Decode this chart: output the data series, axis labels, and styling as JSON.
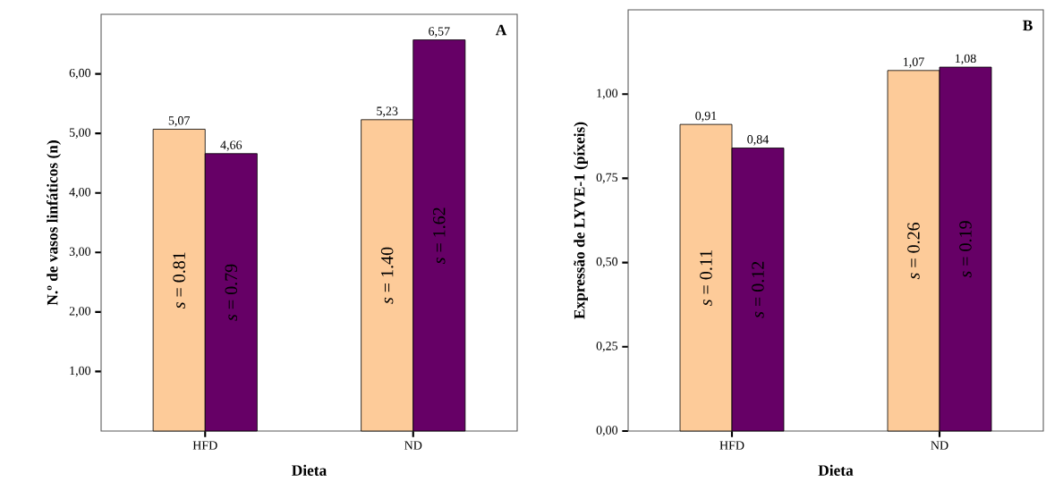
{
  "chart_data": [
    {
      "type": "bar",
      "xlabel": "Dieta",
      "ylabel": "N.º de vasos linfáticos (n)",
      "categories": [
        "HFD",
        "ND"
      ],
      "series": [
        {
          "color": "#fdcb99",
          "values": [
            5.07,
            5.23
          ],
          "value_labels": [
            "5,07",
            "5,23"
          ]
        },
        {
          "color": "#660066",
          "values": [
            4.66,
            6.57
          ],
          "value_labels": [
            "4,66",
            "6,57"
          ]
        }
      ],
      "ylim": [
        0,
        7
      ],
      "yticks": [
        {
          "value": 1,
          "label": "1,00"
        },
        {
          "value": 2,
          "label": "2,00"
        },
        {
          "value": 3,
          "label": "3,00"
        },
        {
          "value": 4,
          "label": "4,00"
        },
        {
          "value": 5,
          "label": "5,00"
        },
        {
          "value": 6,
          "label": "6,00"
        }
      ],
      "annotations": [
        "A",
        "*s* = 0.81",
        "*s* = 0.79",
        "*s* = 1.40",
        "*s* = 1.62"
      ]
    },
    {
      "type": "bar",
      "xlabel": "Dieta",
      "ylabel": "Expressão de LYVE-1 (píxeis)",
      "categories": [
        "HFD",
        "ND"
      ],
      "series": [
        {
          "color": "#fdcb99",
          "values": [
            0.91,
            1.07
          ],
          "value_labels": [
            "0,91",
            "1,07"
          ]
        },
        {
          "color": "#660066",
          "values": [
            0.84,
            1.08
          ],
          "value_labels": [
            "0,84",
            "1,08"
          ]
        }
      ],
      "ylim": [
        0,
        1.25
      ],
      "yticks": [
        {
          "value": 0,
          "label": "0,00"
        },
        {
          "value": 0.25,
          "label": "0,25"
        },
        {
          "value": 0.5,
          "label": "0,50"
        },
        {
          "value": 0.75,
          "label": "0,75"
        },
        {
          "value": 1,
          "label": "1,00"
        }
      ],
      "annotations": [
        "B",
        "*s* = 0.11",
        "*s* = 0.12",
        "*s* = 0.26",
        "*s* = 0.19"
      ]
    }
  ]
}
